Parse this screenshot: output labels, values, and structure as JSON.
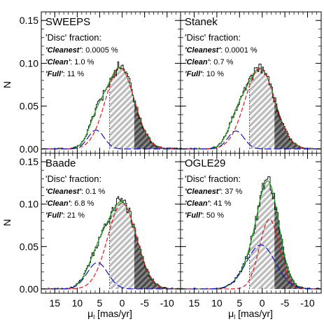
{
  "figure": {
    "ylabel": "N",
    "xlabel_main": "μ",
    "xlabel_sub": "l",
    "xlabel_unit": " [mas/yr]"
  },
  "chart_data": {
    "type": "histogram",
    "xlim": [
      18,
      -13
    ],
    "ylim": [
      -0.005,
      0.16
    ],
    "xticks": [
      15,
      10,
      5,
      0,
      -5,
      -10
    ],
    "xtick_labels": [
      "15",
      "10",
      "5",
      "0",
      "-5",
      "-10"
    ],
    "yticks": [
      0.0,
      0.05,
      0.1,
      0.15
    ],
    "ytick_labels": [
      "0.00",
      "0.05",
      "0.10",
      "0.15"
    ],
    "panels": [
      {
        "name": "SWEEPS",
        "disc_heading": "'Disc' fraction:",
        "fractions": [
          {
            "label": "'Cleanest'",
            "value": ": 0.0005 %"
          },
          {
            "label": "'Clean'",
            "value": ": 1.0 %"
          },
          {
            "label": "'Full'",
            "value": ": 11 %"
          }
        ],
        "bulge": {
          "mu": 0.5,
          "sigma": 3.2,
          "amp": 0.095
        },
        "disc": {
          "mu": 5.8,
          "sigma": 1.8,
          "amp": 0.022
        },
        "cut_left": 2.8,
        "cut_right": -2.7
      },
      {
        "name": "Stanek",
        "disc_heading": "'Disc' fraction:",
        "fractions": [
          {
            "label": "'Cleanest'",
            "value": ": 0.0001 %"
          },
          {
            "label": "'Clean'",
            "value": ": 0.7 %"
          },
          {
            "label": "'Full'",
            "value": ": 10 %"
          }
        ],
        "bulge": {
          "mu": 0.5,
          "sigma": 3.3,
          "amp": 0.094
        },
        "disc": {
          "mu": 5.8,
          "sigma": 1.8,
          "amp": 0.021
        },
        "cut_left": 2.8,
        "cut_right": -2.7
      },
      {
        "name": "Baade",
        "disc_heading": "'Disc' fraction:",
        "fractions": [
          {
            "label": "'Cleanest'",
            "value": ": 0.1 %"
          },
          {
            "label": "'Clean'",
            "value": ": 6.8 %"
          },
          {
            "label": "'Full'",
            "value": ": 21 %"
          }
        ],
        "bulge": {
          "mu": 0.0,
          "sigma": 3.2,
          "amp": 0.101
        },
        "disc": {
          "mu": 5.5,
          "sigma": 2.3,
          "amp": 0.031
        },
        "cut_left": 2.8,
        "cut_right": -2.7
      },
      {
        "name": "OGLE29",
        "disc_heading": "'Disc' fraction:",
        "fractions": [
          {
            "label": "'Cleanest'",
            "value": ": 37 %"
          },
          {
            "label": "'Clean'",
            "value": ": 41 %"
          },
          {
            "label": "'Full'",
            "value": ": 50 %"
          }
        ],
        "bulge": {
          "mu": -1.6,
          "sigma": 2.2,
          "amp": 0.082
        },
        "disc": {
          "mu": 0.3,
          "sigma": 3.2,
          "amp": 0.052
        },
        "cut_left": 2.8,
        "cut_right": -2.7
      }
    ]
  }
}
